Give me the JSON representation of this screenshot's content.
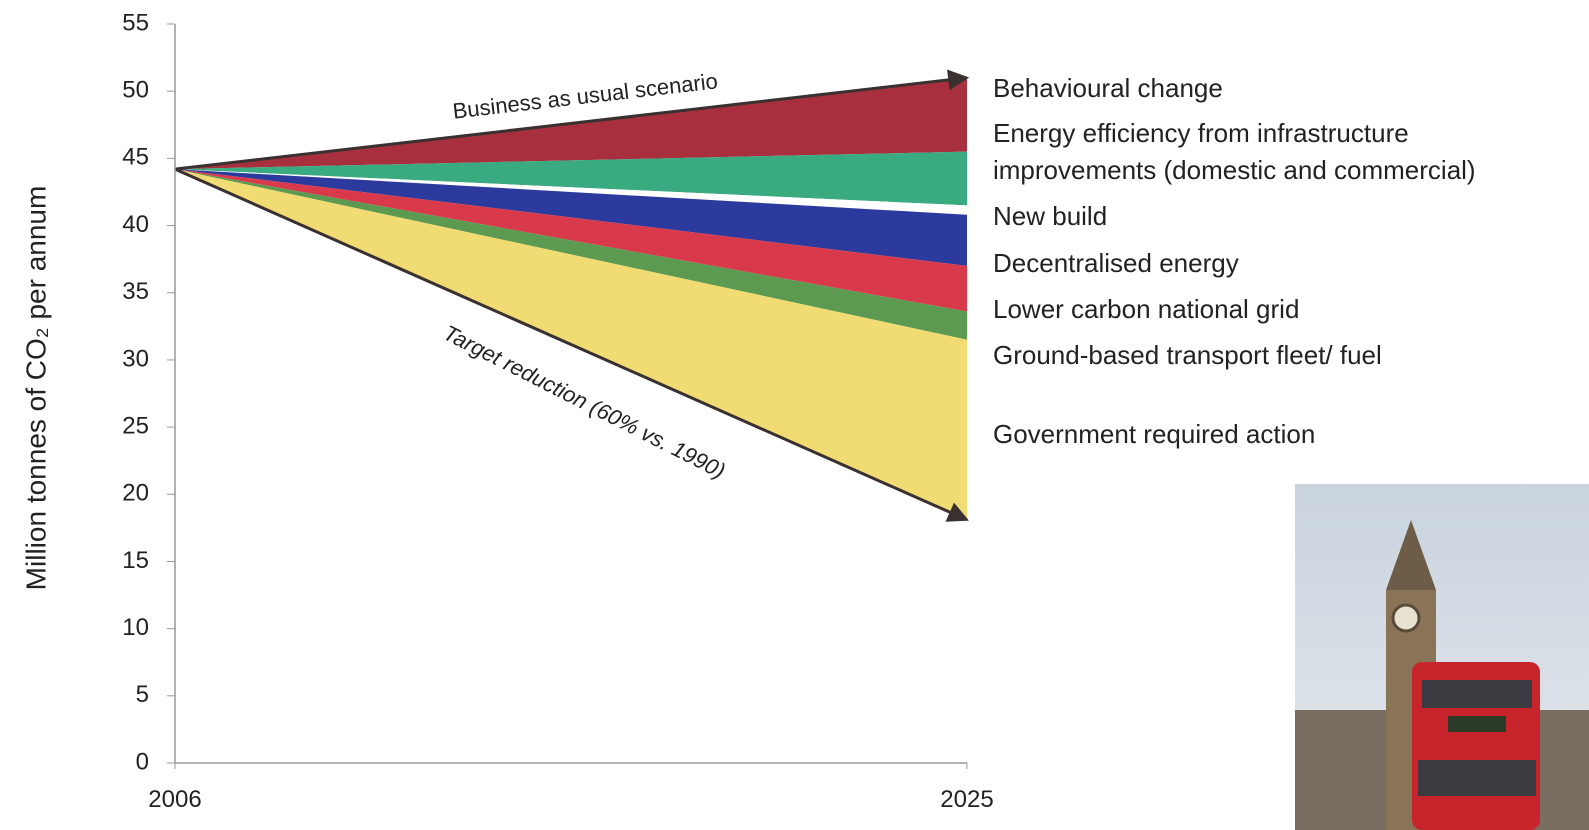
{
  "chart_data": {
    "type": "wedge",
    "y_label": "Million tonnes of CO₂ per annum",
    "xlim": [
      2006,
      2025
    ],
    "xticks": [
      2006,
      2025
    ],
    "ylim": [
      0,
      55
    ],
    "yticks": [
      0,
      5,
      10,
      15,
      20,
      25,
      30,
      35,
      40,
      45,
      50,
      55
    ],
    "start_value": 44.2,
    "bau_2025": 51.0,
    "annotations": [
      "Business as usual scenario",
      "Target reduction (60% vs. 1990)"
    ],
    "series": [
      {
        "name": "Behavioural change",
        "color": "#a8303e",
        "value": 5.5
      },
      {
        "name": "Energy efficiency from infrastructure improvements (domestic and commercial)",
        "color": "#3aaa80",
        "value": 4.0
      },
      {
        "name": "New build",
        "color": "#ffffff",
        "value": 0.7
      },
      {
        "name": "Decentralised energy",
        "color": "#2b3a9c",
        "value": 3.8
      },
      {
        "name": "Lower carbon national grid",
        "color": "#d83a4c",
        "value": 3.4
      },
      {
        "name": "Ground-based transport fleet/ fuel",
        "color": "#5c9a52",
        "value": 2.1
      },
      {
        "name": "Government required action",
        "color": "#f0dc72",
        "value": 13.4
      }
    ]
  }
}
